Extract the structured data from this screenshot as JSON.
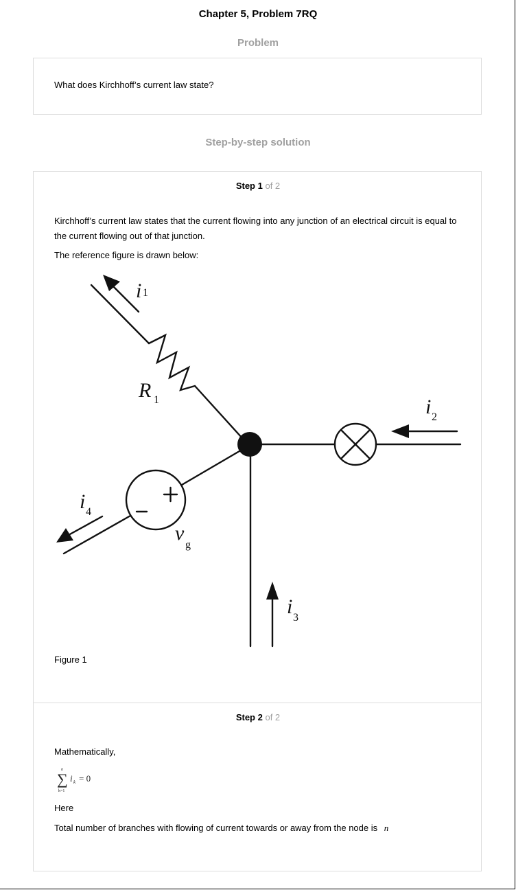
{
  "header": {
    "title": "Chapter 5, Problem 7RQ"
  },
  "problem": {
    "heading": "Problem",
    "question": "What does Kirchhoff’s current law state?"
  },
  "solution": {
    "heading": "Step-by-step solution",
    "steps": [
      {
        "label": "Step 1",
        "of": "of 2",
        "paragraph1": "Kirchhoff’s current law states that the current flowing into any junction of an electrical circuit is equal to the current flowing out of that junction.",
        "paragraph2": "The reference figure is drawn below:",
        "figure_caption": "Figure 1"
      },
      {
        "label": "Step 2",
        "of": "of 2",
        "line1": "Mathematically,",
        "equation": {
          "upper": "n",
          "lower": "k=1",
          "term": "i",
          "sub": "k",
          "rhs": "= 0"
        },
        "line2": "Here",
        "line3": "Total number of branches with flowing of current towards or away from the node is",
        "line3_var": "n"
      }
    ]
  },
  "figure": {
    "labels": {
      "i1": {
        "main": "i",
        "sub": "1"
      },
      "i2": {
        "main": "i",
        "sub": "2"
      },
      "i3": {
        "main": "i",
        "sub": "3"
      },
      "i4": {
        "main": "i",
        "sub": "4"
      },
      "r1": {
        "main": "R",
        "sub": "1"
      },
      "vg": {
        "main": "v",
        "sub": "g"
      },
      "plus": "+",
      "minus": "−"
    }
  }
}
